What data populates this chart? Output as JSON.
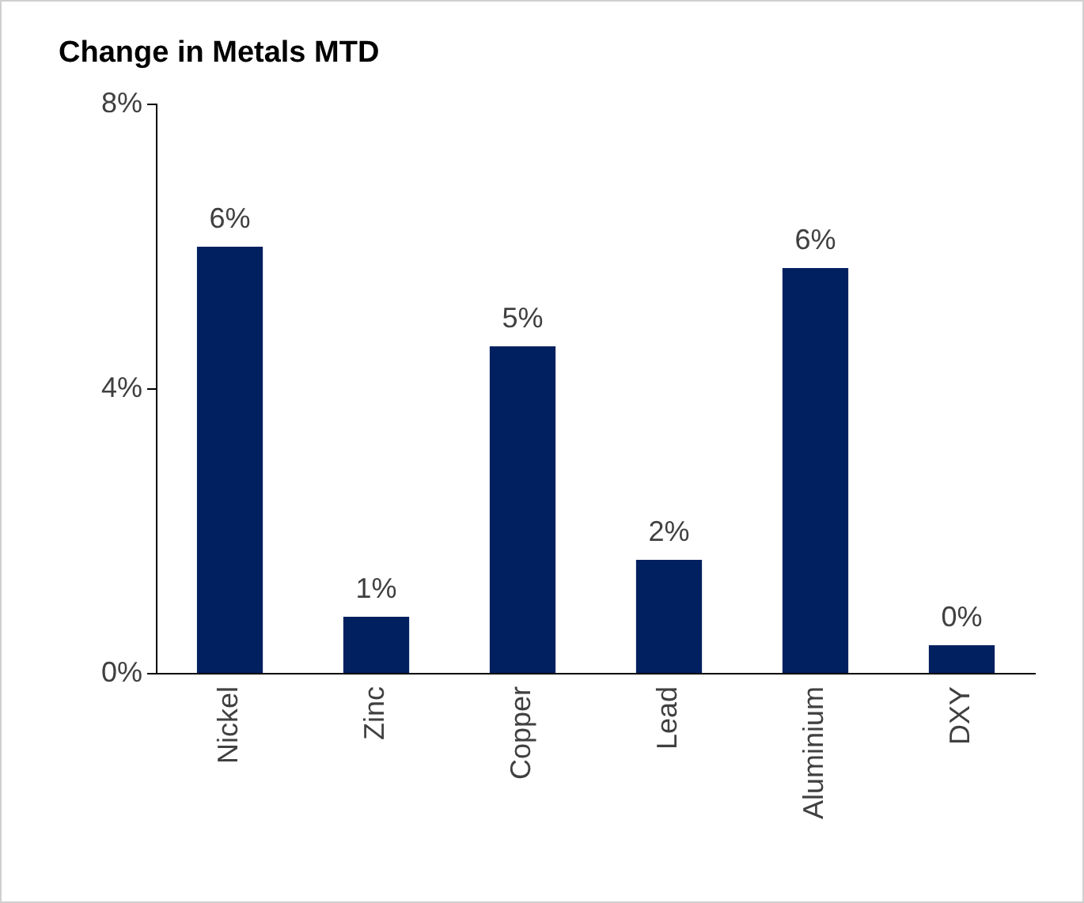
{
  "chart_data": {
    "type": "bar",
    "title": "Change in Metals MTD",
    "categories": [
      "Nickel",
      "Zinc",
      "Copper",
      "Lead",
      "Aluminium",
      "DXY"
    ],
    "values": [
      6.0,
      0.8,
      4.6,
      1.6,
      5.7,
      0.4
    ],
    "value_labels": [
      "6%",
      "1%",
      "5%",
      "2%",
      "6%",
      "0%"
    ],
    "color": "#002060",
    "ylim": [
      0,
      8
    ],
    "yticks": [
      {
        "value": 0,
        "label": "0%"
      },
      {
        "value": 4,
        "label": "4%"
      },
      {
        "value": 8,
        "label": "8%"
      }
    ],
    "grid": false,
    "legend": false
  }
}
